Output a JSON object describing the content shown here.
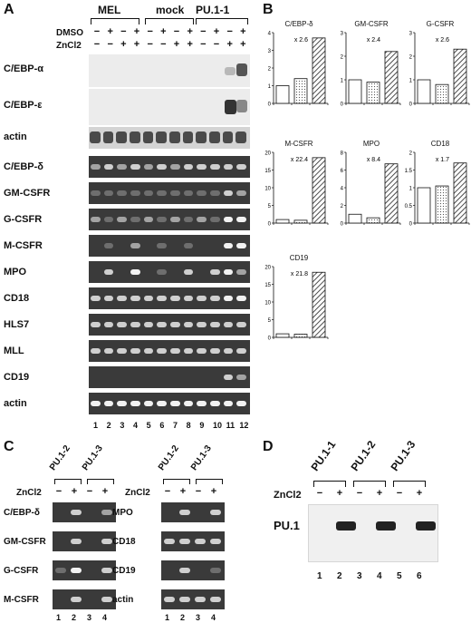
{
  "panels": {
    "A": "A",
    "B": "B",
    "C": "C",
    "D": "D"
  },
  "panelA": {
    "groups": [
      "MEL",
      "mock",
      "PU.1-1"
    ],
    "treatments": [
      "DMSO",
      "ZnCl2"
    ],
    "dmso_signs": [
      "−",
      "+",
      "−",
      "+",
      "−",
      "+",
      "−",
      "+",
      "−",
      "+",
      "−",
      "+"
    ],
    "zncl_signs": [
      "−",
      "−",
      "+",
      "+",
      "−",
      "−",
      "+",
      "+",
      "−",
      "−",
      "+",
      "+"
    ],
    "northern_rows": [
      "C/EBP-α",
      "C/EBP-ε",
      "actin"
    ],
    "rtpcr_rows": [
      "C/EBP-δ",
      "GM-CSFR",
      "G-CSFR",
      "M-CSFR",
      "MPO",
      "CD18",
      "HLS7",
      "MLL",
      "CD19",
      "actin"
    ],
    "lanes": [
      "1",
      "2",
      "3",
      "4",
      "5",
      "6",
      "7",
      "8",
      "9",
      "10",
      "11",
      "12"
    ]
  },
  "chart_data": [
    {
      "type": "bar",
      "title": "C/EBP-δ",
      "annotation": "x 2.6",
      "ylim": [
        0,
        4
      ],
      "yticks": [
        "0",
        "1",
        "2",
        "3",
        "4"
      ],
      "values": [
        1.0,
        1.4,
        3.7
      ]
    },
    {
      "type": "bar",
      "title": "GM-CSFR",
      "annotation": "x 2.4",
      "ylim": [
        0,
        3
      ],
      "yticks": [
        "0",
        "1",
        "2",
        "3"
      ],
      "values": [
        1.0,
        0.9,
        2.2
      ]
    },
    {
      "type": "bar",
      "title": "G-CSFR",
      "annotation": "x 2.6",
      "ylim": [
        0,
        3
      ],
      "yticks": [
        "0",
        "1",
        "2",
        "3"
      ],
      "values": [
        1.0,
        0.8,
        2.3
      ]
    },
    {
      "type": "bar",
      "title": "M-CSFR",
      "annotation": "x 22.4",
      "ylim": [
        0,
        20
      ],
      "yticks": [
        "0",
        "5",
        "10",
        "15",
        "20"
      ],
      "values": [
        1.0,
        0.8,
        18.5
      ]
    },
    {
      "type": "bar",
      "title": "MPO",
      "annotation": "x 8.4",
      "ylim": [
        0,
        8
      ],
      "yticks": [
        "0",
        "2",
        "4",
        "6",
        "8"
      ],
      "values": [
        1.0,
        0.6,
        6.7
      ]
    },
    {
      "type": "bar",
      "title": "CD18",
      "annotation": "x 1.7",
      "ylim": [
        0,
        2
      ],
      "yticks": [
        "0",
        "0.5",
        "1",
        "1.5",
        "2"
      ],
      "values": [
        1.0,
        1.05,
        1.7
      ]
    },
    {
      "type": "bar",
      "title": "CD19",
      "annotation": "x 21.8",
      "ylim": [
        0,
        20
      ],
      "yticks": [
        "0",
        "5",
        "10",
        "15",
        "20"
      ],
      "values": [
        1.0,
        0.9,
        18.4
      ]
    }
  ],
  "panelC": {
    "clones": [
      "PU.1-2",
      "PU.1-3"
    ],
    "treatment": "ZnCl2",
    "signs": [
      "−",
      "+",
      "−",
      "+"
    ],
    "left_rows": [
      "C/EBP-δ",
      "GM-CSFR",
      "G-CSFR",
      "M-CSFR"
    ],
    "right_rows": [
      "MPO",
      "CD18",
      "CD19",
      "actin"
    ],
    "lanes": [
      "1",
      "2",
      "3",
      "4"
    ]
  },
  "panelD": {
    "clones": [
      "PU.1-1",
      "PU.1-2",
      "PU.1-3"
    ],
    "treatment": "ZnCl2",
    "signs": [
      "−",
      "+",
      "−",
      "+",
      "−",
      "+"
    ],
    "row": "PU.1",
    "lanes": [
      "1",
      "2",
      "3",
      "4",
      "5",
      "6"
    ]
  },
  "colors": {
    "gel_dark": "#3a3a3a",
    "gel_light": "#ececec",
    "band_bright": "#f2f2f2"
  }
}
